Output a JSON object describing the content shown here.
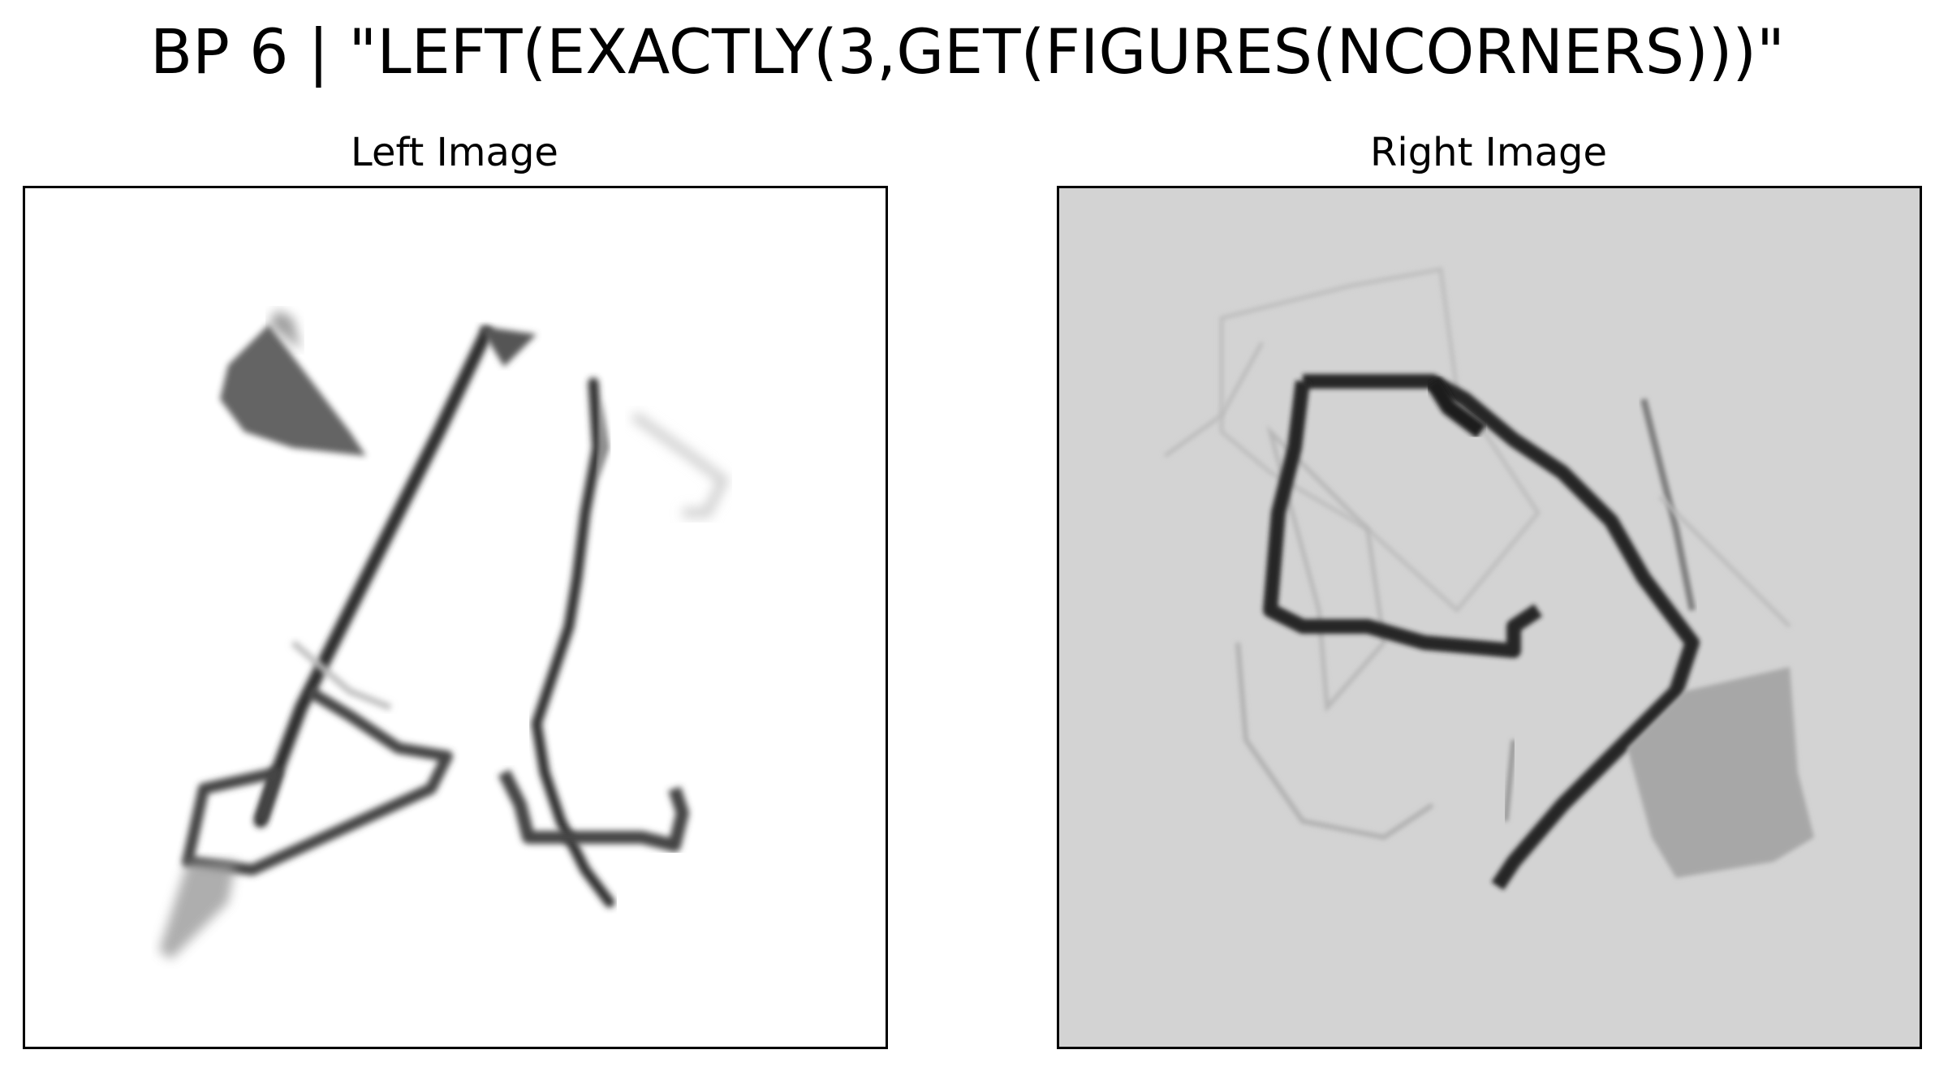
{
  "figure": {
    "title": "BP 6 | \"LEFT(EXACTLY(3,GET(FIGURES(NCORNERS)))\""
  },
  "panels": [
    {
      "title": "Left Image",
      "background": "#ffffff"
    },
    {
      "title": "Right Image",
      "background": "#d3d3d3"
    }
  ]
}
